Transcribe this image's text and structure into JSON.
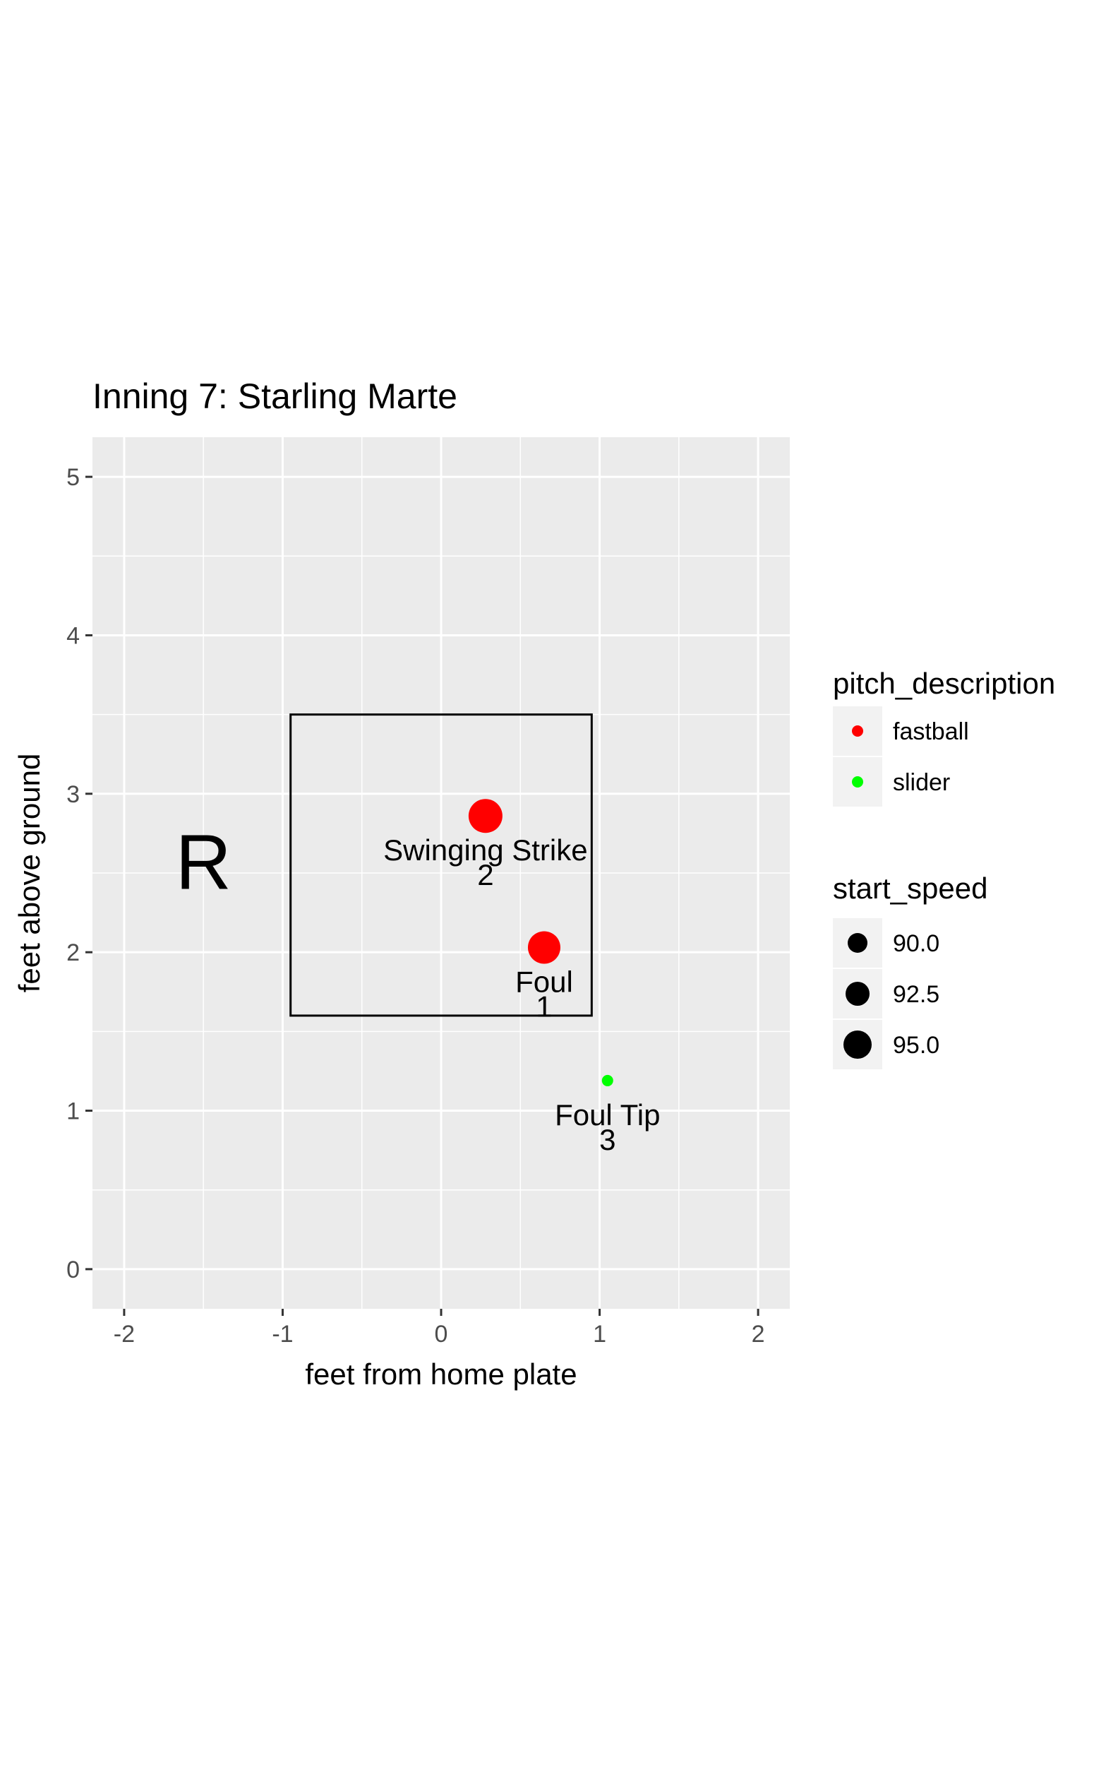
{
  "chart_data": {
    "type": "scatter",
    "title": "Inning 7: Starling Marte",
    "xlabel": "feet from home plate",
    "ylabel": "feet above ground",
    "xlim": [
      -2.2,
      2.2
    ],
    "ylim": [
      -0.25,
      5.25
    ],
    "x_ticks": [
      -2,
      -1,
      0,
      1,
      2
    ],
    "x_tick_labels": [
      "-2",
      "-1",
      "0",
      "1",
      "2"
    ],
    "y_ticks": [
      0,
      1,
      2,
      3,
      4,
      5
    ],
    "y_tick_labels": [
      "0",
      "1",
      "2",
      "3",
      "4",
      "5"
    ],
    "grid": true,
    "batter_side_label": "R",
    "batter_side_position": [
      -1.5,
      2.4
    ],
    "strike_zone": {
      "x": [
        -0.95,
        0.95
      ],
      "y": [
        1.6,
        3.5
      ]
    },
    "colors": {
      "fastball": "#ff0000",
      "slider": "#00ff00",
      "panel": "#ebebeb"
    },
    "points": [
      {
        "x": 0.28,
        "y": 2.86,
        "pitch_description": "fastball",
        "start_speed": 95.0,
        "description": "Swinging Strike",
        "number": "2"
      },
      {
        "x": 0.65,
        "y": 2.03,
        "pitch_description": "fastball",
        "start_speed": 94.5,
        "description": "Foul",
        "number": "1"
      },
      {
        "x": 1.05,
        "y": 1.19,
        "pitch_description": "slider",
        "start_speed": 87.0,
        "description": "Foul Tip",
        "number": "3"
      }
    ],
    "legend_position": "right",
    "legends": {
      "color": {
        "title": "pitch_description",
        "entries": [
          "fastball",
          "slider"
        ]
      },
      "size": {
        "title": "start_speed",
        "entries": [
          90.0,
          92.5,
          95.0
        ],
        "labels": [
          "90.0",
          "92.5",
          "95.0"
        ]
      }
    }
  }
}
